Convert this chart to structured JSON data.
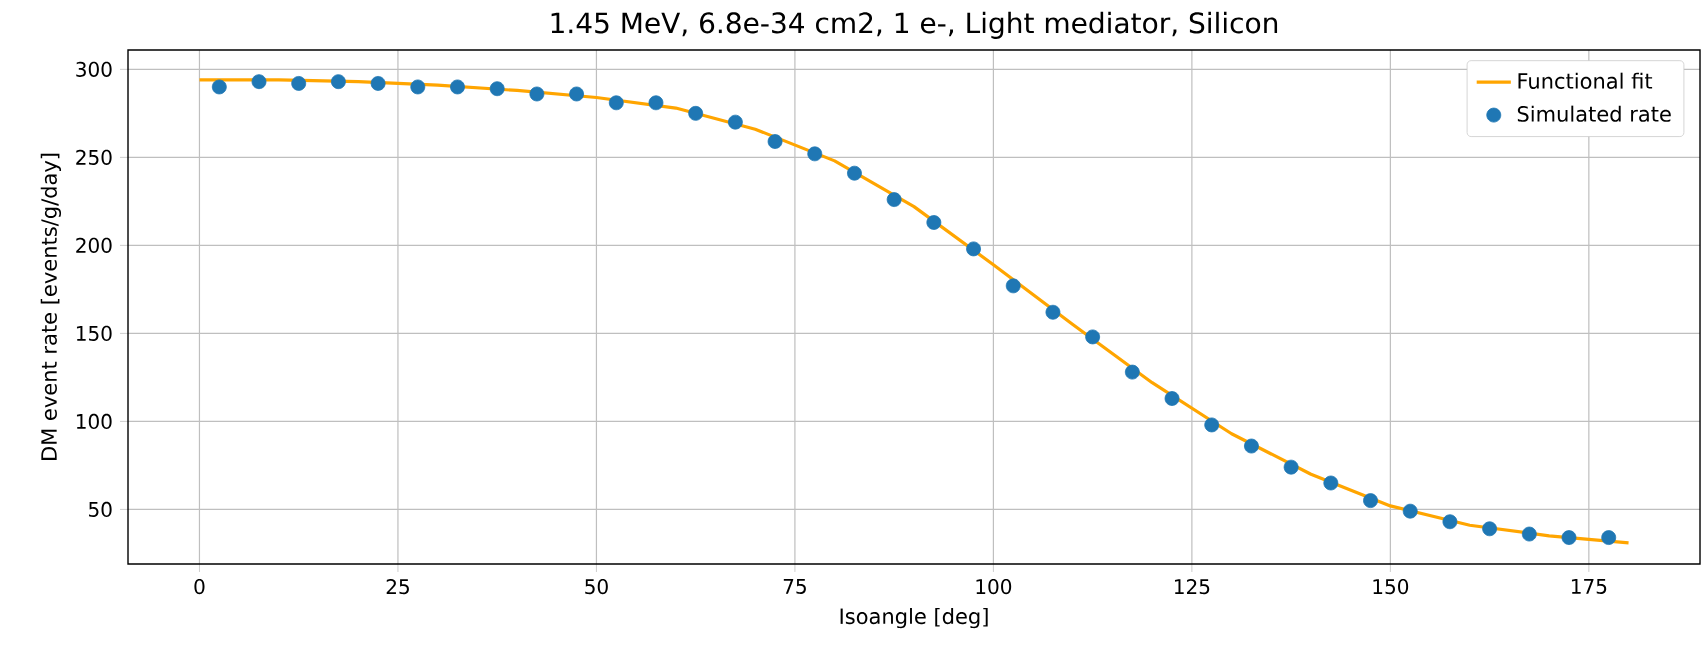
{
  "chart_data": {
    "type": "scatter",
    "title": "1.45 MeV, 6.8e-34 cm2, 1 e-, Light mediator,  Silicon",
    "xlabel": "Isoangle [deg]",
    "ylabel": "DM event rate [events/g/day]",
    "xlim": [
      -9,
      189
    ],
    "ylim": [
      19,
      311
    ],
    "xticks": [
      0,
      25,
      50,
      75,
      100,
      125,
      150,
      175
    ],
    "yticks": [
      50,
      100,
      150,
      200,
      250,
      300
    ],
    "grid": true,
    "legend": "top right",
    "series": [
      {
        "name": "Functional fit",
        "type": "line",
        "color": "#ffa500",
        "marker": "none",
        "x": [
          0,
          10,
          20,
          30,
          40,
          50,
          60,
          70,
          80,
          90,
          100,
          110,
          120,
          130,
          140,
          150,
          160,
          170,
          180
        ],
        "values": [
          294,
          294,
          293,
          291,
          288,
          284,
          278,
          266,
          248,
          222,
          189,
          155,
          122,
          93,
          70,
          52,
          41,
          35,
          31
        ]
      },
      {
        "name": "Simulated rate",
        "color": "#1f77b4",
        "marker": "circle",
        "x": [
          2.5,
          7.5,
          12.5,
          17.5,
          22.5,
          27.5,
          32.5,
          37.5,
          42.5,
          47.5,
          52.5,
          57.5,
          62.5,
          67.5,
          72.5,
          77.5,
          82.5,
          87.5,
          92.5,
          97.5,
          102.5,
          107.5,
          112.5,
          117.5,
          122.5,
          127.5,
          132.5,
          137.5,
          142.5,
          147.5,
          152.5,
          157.5,
          162.5,
          167.5,
          172.5,
          177.5
        ],
        "values": [
          290,
          293,
          292,
          293,
          292,
          290,
          290,
          289,
          286,
          286,
          281,
          281,
          275,
          270,
          259,
          252,
          241,
          226,
          213,
          198,
          177,
          162,
          148,
          128,
          113,
          98,
          86,
          74,
          65,
          55,
          49,
          43,
          39,
          36,
          34,
          34
        ]
      }
    ]
  }
}
